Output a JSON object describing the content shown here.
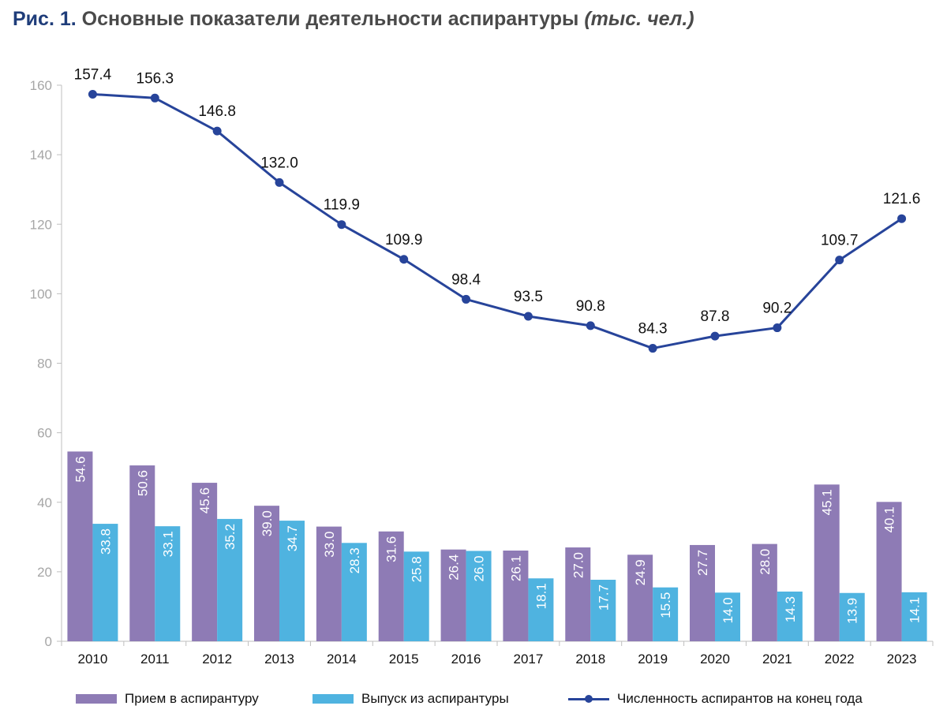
{
  "title": {
    "figure": "Рис. 1.",
    "main": "Основные показатели деятельности аспирантуры",
    "unit": "(тыс. чел.)"
  },
  "colors": {
    "admission": "#8e7bb5",
    "graduation": "#4fb3e0",
    "enrollment": "#27449a",
    "axis_text": "#a6a6a6"
  },
  "chart_data": {
    "type": "bar",
    "categories": [
      "2010",
      "2011",
      "2012",
      "2013",
      "2014",
      "2015",
      "2016",
      "2017",
      "2018",
      "2019",
      "2020",
      "2021",
      "2022",
      "2023"
    ],
    "series": [
      {
        "name": "Прием в аспирантуру",
        "type": "bar",
        "values": [
          54.6,
          50.6,
          45.6,
          39.0,
          33.0,
          31.6,
          26.4,
          26.1,
          27.0,
          24.9,
          27.7,
          28.0,
          45.1,
          40.1
        ]
      },
      {
        "name": "Выпуск из аспирантуры",
        "type": "bar",
        "values": [
          33.8,
          33.1,
          35.2,
          34.7,
          28.3,
          25.8,
          26.0,
          18.1,
          17.7,
          15.5,
          14.0,
          14.3,
          13.9,
          14.1
        ]
      },
      {
        "name": "Численность аспирантов на конец года",
        "type": "line",
        "values": [
          157.4,
          156.3,
          146.8,
          132.0,
          119.9,
          109.9,
          98.4,
          93.5,
          90.8,
          84.3,
          87.8,
          90.2,
          109.7,
          121.6
        ]
      }
    ],
    "yticks": [
      0,
      20,
      40,
      60,
      80,
      100,
      120,
      140,
      160
    ],
    "ylim": [
      0,
      160
    ],
    "xlabel": "",
    "ylabel": "",
    "legend": "bottom"
  }
}
